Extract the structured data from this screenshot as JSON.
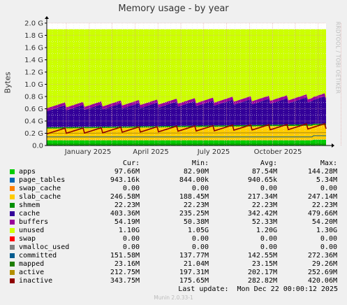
{
  "chart_data": {
    "type": "area",
    "title": "Memory usage - by year",
    "ylabel": "Bytes",
    "ylim": [
      0,
      2.0
    ],
    "yunit": "G",
    "yticks": [
      "0.0",
      "0.2 G",
      "0.4 G",
      "0.6 G",
      "0.8 G",
      "1.0 G",
      "1.2 G",
      "1.4 G",
      "1.6 G",
      "1.8 G",
      "2.0 G"
    ],
    "xticks": [
      "January 2025",
      "April 2025",
      "July 2025",
      "October 2025"
    ],
    "grid": true,
    "stack_order": [
      "apps",
      "page_tables",
      "swap_cache",
      "slab_cache",
      "shmem",
      "cache",
      "buffers",
      "unused"
    ],
    "line_series": [
      "committed",
      "mapped",
      "active",
      "inactive"
    ],
    "legend_headers": [
      "Cur:",
      "Min:",
      "Avg:",
      "Max:"
    ],
    "series": [
      {
        "name": "apps",
        "color": "#00cc00",
        "cur": "97.66M",
        "min": "82.90M",
        "avg": "87.54M",
        "max": "144.28M"
      },
      {
        "name": "page_tables",
        "color": "#0066b3",
        "cur": "943.16k",
        "min": "844.00k",
        "avg": "940.65k",
        "max": "5.34M"
      },
      {
        "name": "swap_cache",
        "color": "#ff8000",
        "cur": "0.00",
        "min": "0.00",
        "avg": "0.00",
        "max": "0.00"
      },
      {
        "name": "slab_cache",
        "color": "#ffcc00",
        "cur": "246.58M",
        "min": "188.45M",
        "avg": "217.34M",
        "max": "247.14M"
      },
      {
        "name": "shmem",
        "color": "#008f00",
        "cur": "22.23M",
        "min": "22.23M",
        "avg": "22.23M",
        "max": "22.23M"
      },
      {
        "name": "cache",
        "color": "#330099",
        "cur": "403.36M",
        "min": "235.25M",
        "avg": "342.42M",
        "max": "479.66M"
      },
      {
        "name": "buffers",
        "color": "#990099",
        "cur": "54.19M",
        "min": "50.38M",
        "avg": "52.33M",
        "max": "54.20M"
      },
      {
        "name": "unused",
        "color": "#ccff00",
        "cur": "1.10G",
        "min": "1.05G",
        "avg": "1.20G",
        "max": "1.30G"
      },
      {
        "name": "swap",
        "color": "#ff0000",
        "cur": "0.00",
        "min": "0.00",
        "avg": "0.00",
        "max": "0.00"
      },
      {
        "name": "vmalloc_used",
        "color": "#808080",
        "cur": "0.00",
        "min": "0.00",
        "avg": "0.00",
        "max": "0.00"
      },
      {
        "name": "committed",
        "color": "#005b8f",
        "cur": "151.58M",
        "min": "137.77M",
        "avg": "142.55M",
        "max": "272.36M"
      },
      {
        "name": "mapped",
        "color": "#1e7d00",
        "cur": "23.16M",
        "min": "21.04M",
        "avg": "23.15M",
        "max": "29.26M"
      },
      {
        "name": "active",
        "color": "#b38f00",
        "cur": "212.75M",
        "min": "197.31M",
        "avg": "202.17M",
        "max": "252.69M"
      },
      {
        "name": "inactive",
        "color": "#8f0000",
        "cur": "343.75M",
        "min": "175.65M",
        "avg": "282.82M",
        "max": "420.06M"
      }
    ]
  },
  "last_update": "Last update:  Mon Dec 22 00:00:12 2025",
  "footer": "Munin 2.0.33-1",
  "vendor": "RRDTOOL / TOBI OETIKER"
}
